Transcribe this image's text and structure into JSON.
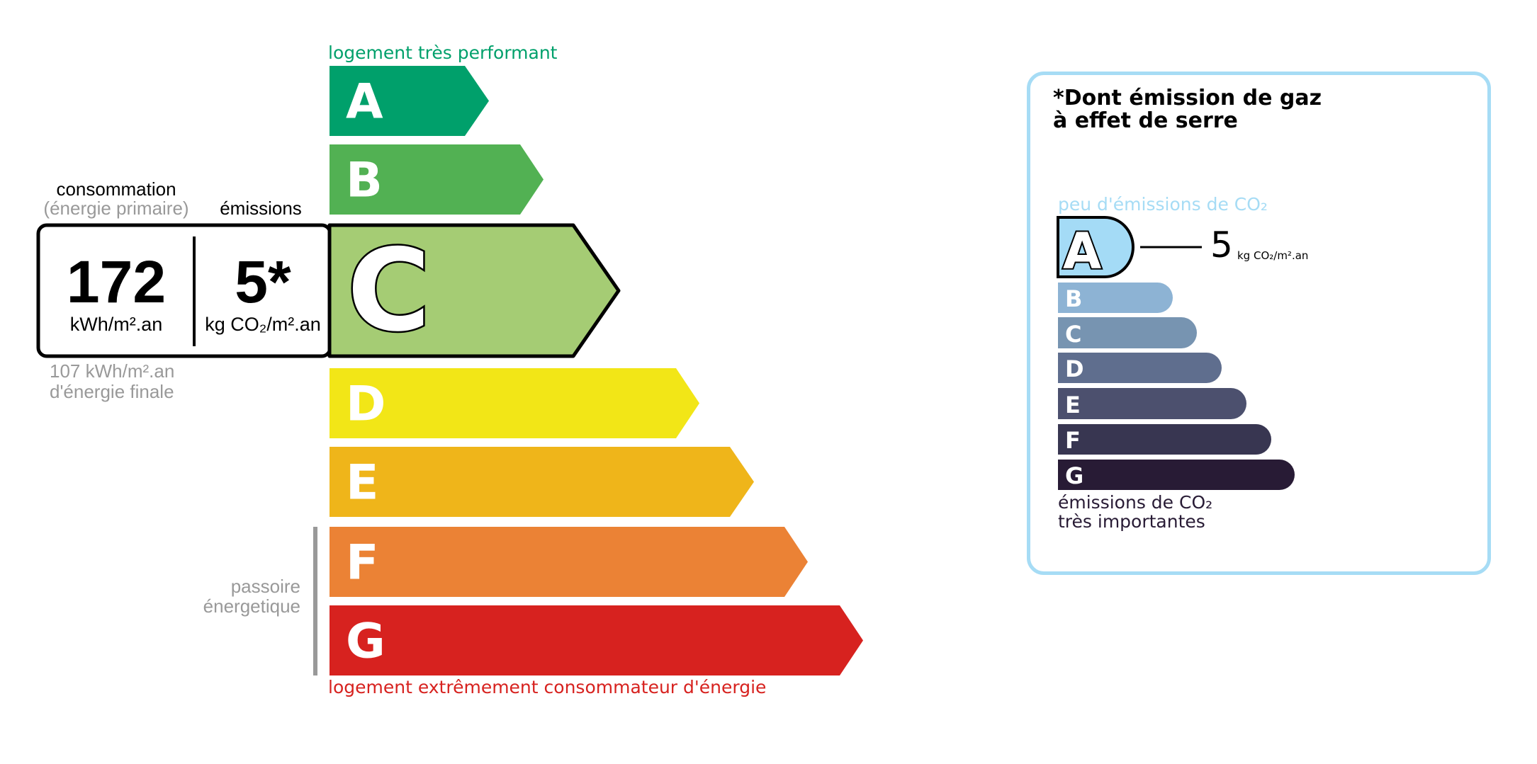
{
  "energy": {
    "top_label": "logement très performant",
    "bottom_label": "logement extrêmement consommateur d'énergie",
    "passoire_label": [
      "passoire",
      "énergetique"
    ],
    "classes": [
      {
        "letter": "A",
        "color": "#00a06b"
      },
      {
        "letter": "B",
        "color": "#52b153"
      },
      {
        "letter": "C",
        "color": "#a5cc74"
      },
      {
        "letter": "D",
        "color": "#f2e617"
      },
      {
        "letter": "E",
        "color": "#efb51a"
      },
      {
        "letter": "F",
        "color": "#eb8235"
      },
      {
        "letter": "G",
        "color": "#d7221f"
      }
    ],
    "current_class": "C",
    "consumption_heading": "consommation",
    "consumption_subheading": "(énergie primaire)",
    "emissions_heading": "émissions",
    "consumption_value": "172",
    "consumption_unit": "kWh/m².an",
    "emissions_value": "5*",
    "emissions_unit": "kg CO₂/m².an",
    "final_energy_value": "107 kWh/m².an",
    "final_energy_label": "d'énergie finale",
    "top_color": "#00a06b",
    "bottom_color": "#d7221f"
  },
  "ghg": {
    "title_line1": "*Dont émission de gaz",
    "title_line2": "à effet de serre",
    "top_label": "peu d'émissions de CO₂",
    "bottom_label_line1": "émissions de CO₂",
    "bottom_label_line2": "très importantes",
    "value": "5",
    "unit": "kg CO₂/m².an",
    "current_class": "A",
    "border_color": "#a6dcf5",
    "classes": [
      {
        "letter": "A",
        "color": "#a4dbf6"
      },
      {
        "letter": "B",
        "color": "#8db3d4"
      },
      {
        "letter": "C",
        "color": "#7794b1"
      },
      {
        "letter": "D",
        "color": "#5f6e8e"
      },
      {
        "letter": "E",
        "color": "#4c506e"
      },
      {
        "letter": "F",
        "color": "#383651"
      },
      {
        "letter": "G",
        "color": "#281b35"
      }
    ]
  }
}
